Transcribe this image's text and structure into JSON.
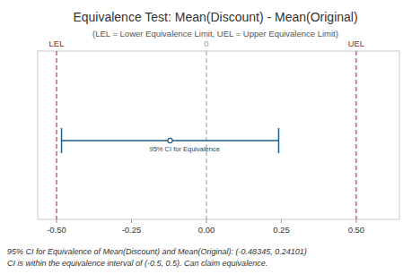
{
  "chart_data": {
    "type": "interval",
    "title": "Equivalence Test: Mean(Discount) - Mean(Original)",
    "subtitle": "(LEL = Lower Equivalence Limit, UEL = Upper Equivalence Limit)",
    "xlim": [
      -0.563,
      0.644
    ],
    "xticks": [
      {
        "value": -0.5,
        "label": "-0.50"
      },
      {
        "value": -0.25,
        "label": "-0.25"
      },
      {
        "value": 0,
        "label": "0.00"
      },
      {
        "value": 0.25,
        "label": "0.25"
      },
      {
        "value": 0.5,
        "label": "0.50"
      }
    ],
    "estimate": -0.12122,
    "ci": [
      -0.48345,
      0.24101
    ],
    "ci_label": "95% CI for Equivalence",
    "color": "#1f5d8c",
    "reference_lines": [
      {
        "value": -0.5,
        "label": "LEL",
        "color": "#9b1c1c"
      },
      {
        "value": 0,
        "label": "0",
        "color": "#9a9a9a"
      },
      {
        "value": 0.5,
        "label": "UEL",
        "color": "#9b1c1c"
      }
    ],
    "notes": [
      "95% CI for Equivalence of Mean(Discount) and Mean(Original): (-0.48345, 0.24101)",
      "CI is within the equivalence interval of (-0.5, 0.5). Can claim equivalence."
    ]
  }
}
